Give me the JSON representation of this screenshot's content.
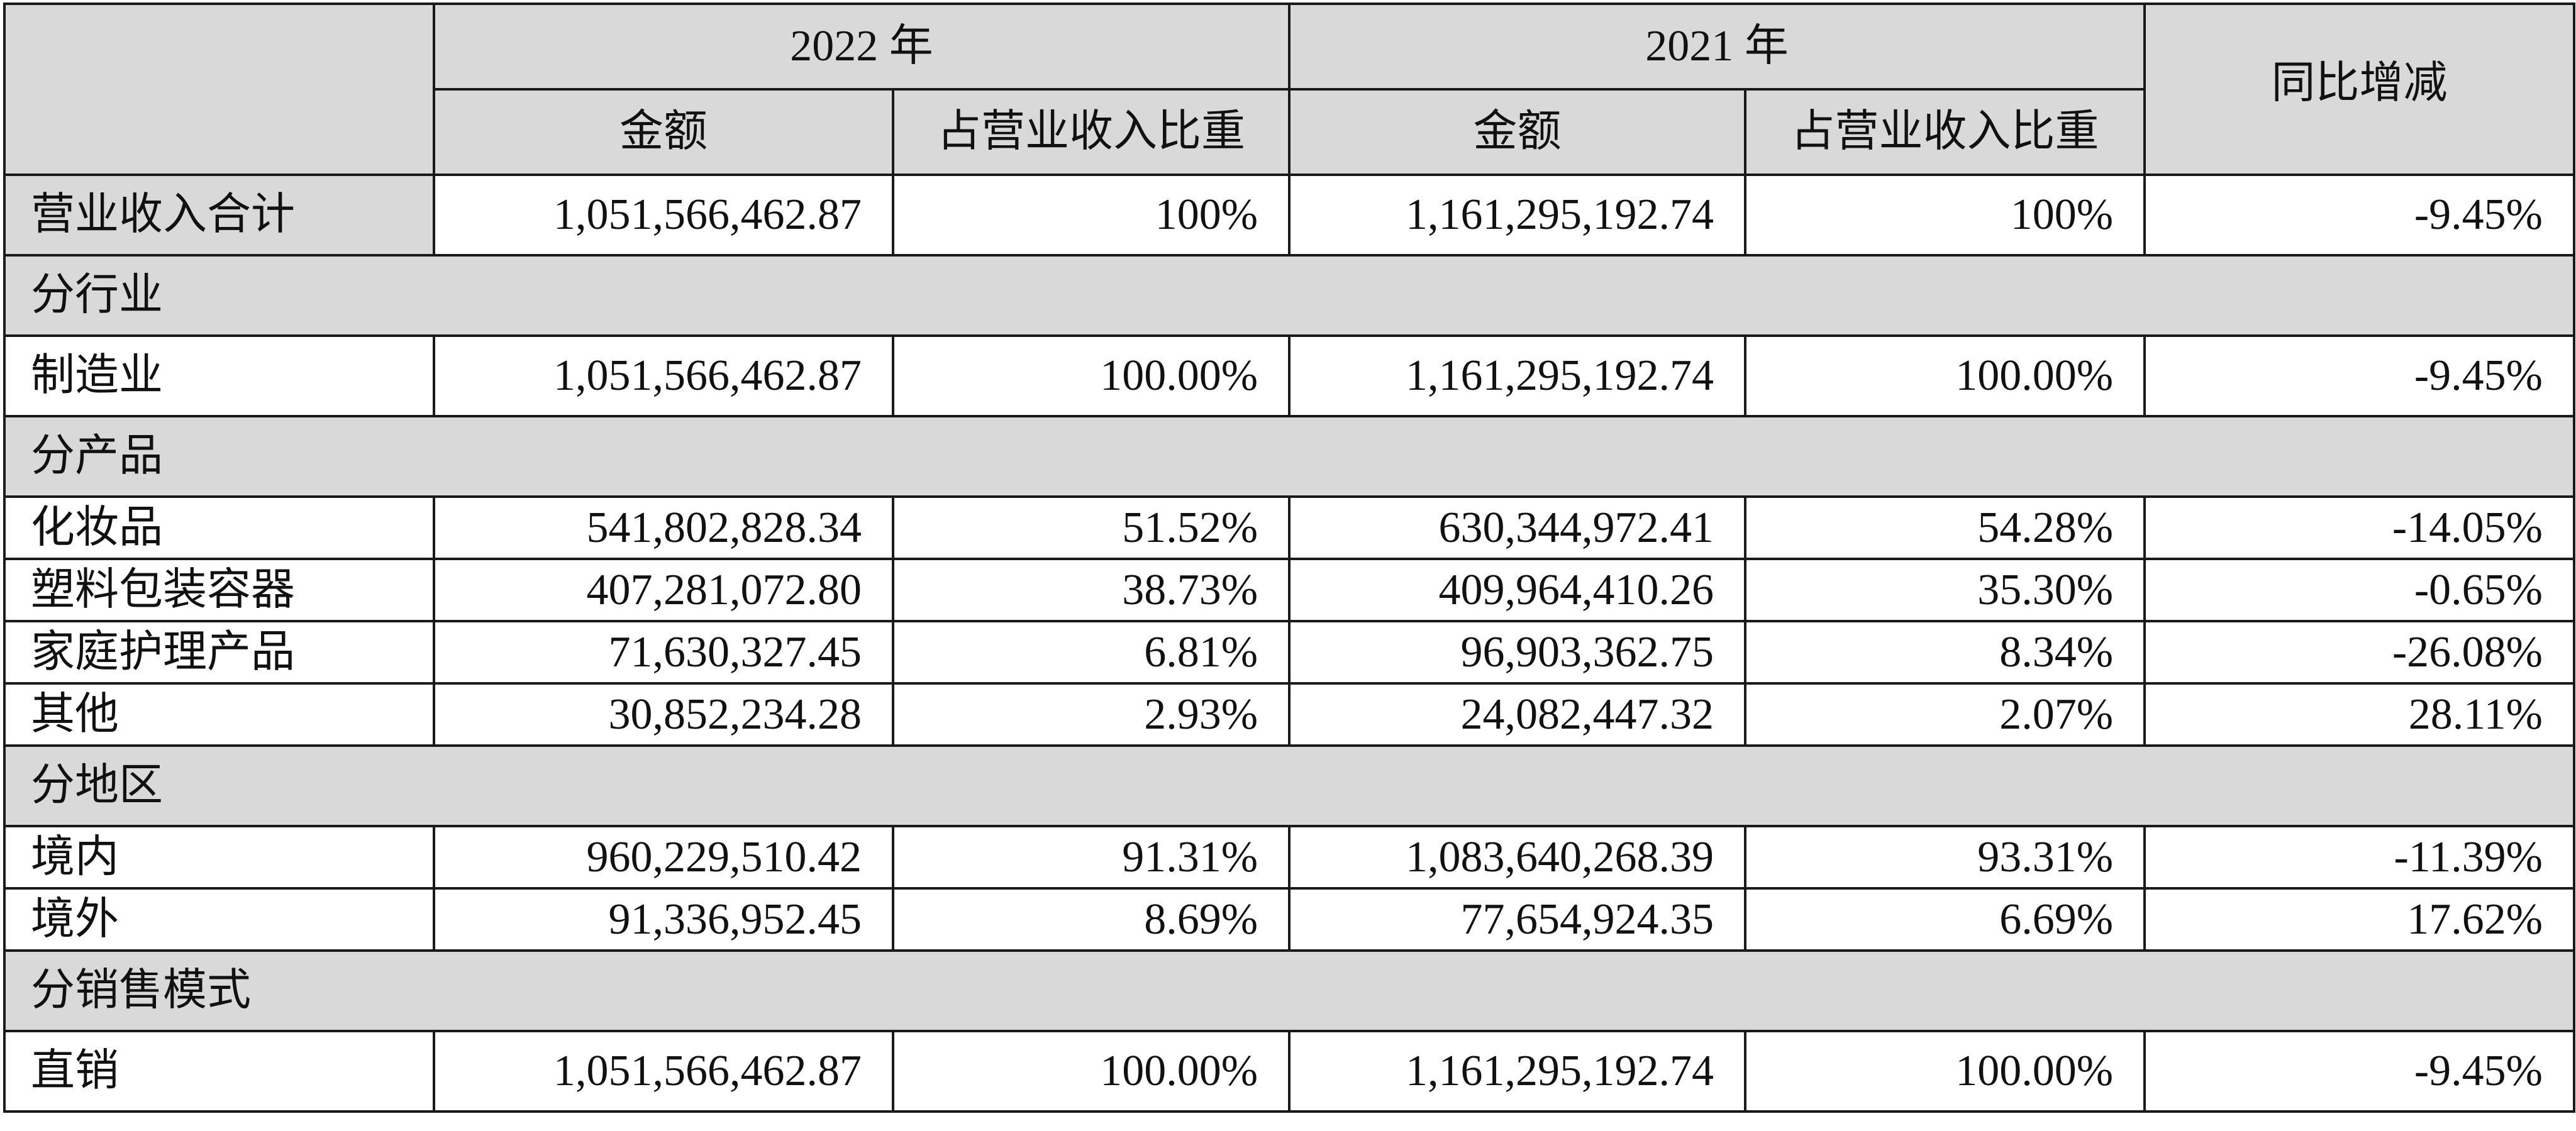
{
  "header": {
    "year_2022": "2022 年",
    "year_2021": "2021 年",
    "amount": "金额",
    "share": "占营业收入比重",
    "yoy": "同比增减"
  },
  "total": {
    "label": "营业收入合计",
    "amount_2022": "1,051,566,462.87",
    "share_2022": "100%",
    "amount_2021": "1,161,295,192.74",
    "share_2021": "100%",
    "yoy": "-9.45%"
  },
  "groups": {
    "industry": {
      "title": "分行业",
      "rows": [
        {
          "label": "制造业",
          "amount_2022": "1,051,566,462.87",
          "share_2022": "100.00%",
          "amount_2021": "1,161,295,192.74",
          "share_2021": "100.00%",
          "yoy": "-9.45%"
        }
      ]
    },
    "product": {
      "title": "分产品",
      "rows": [
        {
          "label": "化妆品",
          "amount_2022": "541,802,828.34",
          "share_2022": "51.52%",
          "amount_2021": "630,344,972.41",
          "share_2021": "54.28%",
          "yoy": "-14.05%"
        },
        {
          "label": "塑料包装容器",
          "amount_2022": "407,281,072.80",
          "share_2022": "38.73%",
          "amount_2021": "409,964,410.26",
          "share_2021": "35.30%",
          "yoy": "-0.65%"
        },
        {
          "label": "家庭护理产品",
          "amount_2022": "71,630,327.45",
          "share_2022": "6.81%",
          "amount_2021": "96,903,362.75",
          "share_2021": "8.34%",
          "yoy": "-26.08%"
        },
        {
          "label": "其他",
          "amount_2022": "30,852,234.28",
          "share_2022": "2.93%",
          "amount_2021": "24,082,447.32",
          "share_2021": "2.07%",
          "yoy": "28.11%"
        }
      ]
    },
    "region": {
      "title": "分地区",
      "rows": [
        {
          "label": "境内",
          "amount_2022": "960,229,510.42",
          "share_2022": "91.31%",
          "amount_2021": "1,083,640,268.39",
          "share_2021": "93.31%",
          "yoy": "-11.39%"
        },
        {
          "label": "境外",
          "amount_2022": "91,336,952.45",
          "share_2022": "8.69%",
          "amount_2021": "77,654,924.35",
          "share_2021": "6.69%",
          "yoy": "17.62%"
        }
      ]
    },
    "sales_mode": {
      "title": "分销售模式",
      "rows": [
        {
          "label": "直销",
          "amount_2022": "1,051,566,462.87",
          "share_2022": "100.00%",
          "amount_2021": "1,161,295,192.74",
          "share_2021": "100.00%",
          "yoy": "-9.45%"
        }
      ]
    }
  }
}
